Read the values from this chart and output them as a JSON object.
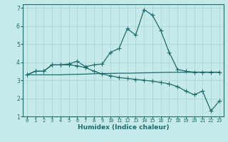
{
  "title": "",
  "xlabel": "Humidex (Indice chaleur)",
  "ylabel": "",
  "background_color": "#c6eaea",
  "grid_color": "#aed4d4",
  "line_color": "#1a6b6b",
  "x_data": [
    0,
    1,
    2,
    3,
    4,
    5,
    6,
    7,
    8,
    9,
    10,
    11,
    12,
    13,
    14,
    15,
    16,
    17,
    18,
    19,
    20,
    21,
    22,
    23
  ],
  "series1": [
    3.3,
    3.5,
    3.5,
    3.85,
    3.85,
    3.9,
    4.05,
    3.75,
    3.85,
    3.9,
    4.55,
    4.75,
    5.85,
    5.5,
    6.9,
    6.6,
    5.75,
    4.55,
    3.6,
    3.5,
    3.45,
    3.45,
    3.45,
    3.45
  ],
  "series2": [
    3.3,
    3.5,
    3.5,
    3.85,
    3.85,
    3.85,
    3.8,
    3.7,
    3.5,
    3.35,
    3.25,
    3.15,
    3.1,
    3.05,
    3.0,
    2.95,
    2.88,
    2.8,
    2.65,
    2.4,
    2.2,
    2.4,
    1.3,
    1.85
  ],
  "series3": [
    3.3,
    3.3,
    3.3,
    3.3,
    3.3,
    3.32,
    3.33,
    3.34,
    3.36,
    3.37,
    3.38,
    3.39,
    3.39,
    3.4,
    3.41,
    3.42,
    3.43,
    3.44,
    3.44,
    3.44,
    3.44,
    3.44,
    3.44,
    3.44
  ],
  "ylim": [
    1,
    7.2
  ],
  "xlim": [
    -0.5,
    23.5
  ],
  "yticks": [
    1,
    2,
    3,
    4,
    5,
    6,
    7
  ],
  "xticks": [
    0,
    1,
    2,
    3,
    4,
    5,
    6,
    7,
    8,
    9,
    10,
    11,
    12,
    13,
    14,
    15,
    16,
    17,
    18,
    19,
    20,
    21,
    22,
    23
  ],
  "xtick_labels": [
    "0",
    "1",
    "2",
    "3",
    "4",
    "5",
    "6",
    "7",
    "8",
    "9",
    "10",
    "11",
    "12",
    "13",
    "14",
    "15",
    "16",
    "17",
    "18",
    "19",
    "20",
    "21",
    "22",
    "23"
  ],
  "marker": "+",
  "markersize": 4,
  "linewidth": 0.9,
  "xlabel_fontsize": 6.5,
  "tick_fontsize": 5.0,
  "ytick_fontsize": 5.5
}
